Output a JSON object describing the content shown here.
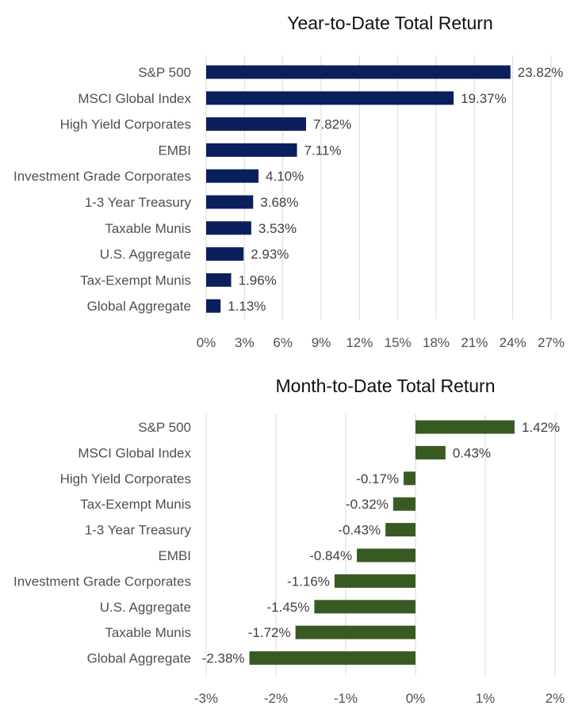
{
  "chart_data": [
    {
      "type": "bar",
      "orientation": "horizontal",
      "title": "Year-to-Date Total Return",
      "xlabel": "",
      "ylabel": "",
      "xlim": [
        0,
        27
      ],
      "xticks": [
        "0%",
        "3%",
        "6%",
        "9%",
        "12%",
        "15%",
        "18%",
        "21%",
        "24%",
        "27%"
      ],
      "grid": "vertical",
      "bar_color": "#0a1f5c",
      "categories": [
        "S&P 500",
        "MSCI Global Index",
        "High Yield Corporates",
        "EMBI",
        "Investment Grade Corporates",
        "1-3 Year Treasury",
        "Taxable Munis",
        "U.S. Aggregate",
        "Tax-Exempt Munis",
        "Global Aggregate"
      ],
      "values": [
        23.82,
        19.37,
        7.82,
        7.11,
        4.1,
        3.68,
        3.53,
        2.93,
        1.96,
        1.13
      ],
      "labels": [
        "23.82%",
        "19.37%",
        "7.82%",
        "7.11%",
        "4.10%",
        "3.68%",
        "3.53%",
        "2.93%",
        "1.96%",
        "1.13%"
      ]
    },
    {
      "type": "bar",
      "orientation": "horizontal",
      "title": "Month-to-Date Total Return",
      "xlabel": "",
      "ylabel": "",
      "xlim": [
        -3,
        2
      ],
      "xticks": [
        "-3%",
        "-2%",
        "-1%",
        "0%",
        "1%",
        "2%"
      ],
      "grid": "vertical",
      "bar_color": "#3a5a24",
      "categories": [
        "S&P 500",
        "MSCI Global Index",
        "High Yield Corporates",
        "Tax-Exempt Munis",
        "1-3 Year Treasury",
        "EMBI",
        "Investment Grade Corporates",
        "U.S. Aggregate",
        "Taxable Munis",
        "Global Aggregate"
      ],
      "values": [
        1.42,
        0.43,
        -0.17,
        -0.32,
        -0.43,
        -0.84,
        -1.16,
        -1.45,
        -1.72,
        -2.38
      ],
      "labels": [
        "1.42%",
        "0.43%",
        "-0.17%",
        "-0.32%",
        "-0.43%",
        "-0.84%",
        "-1.16%",
        "-1.45%",
        "-1.72%",
        "-2.38%"
      ]
    }
  ]
}
